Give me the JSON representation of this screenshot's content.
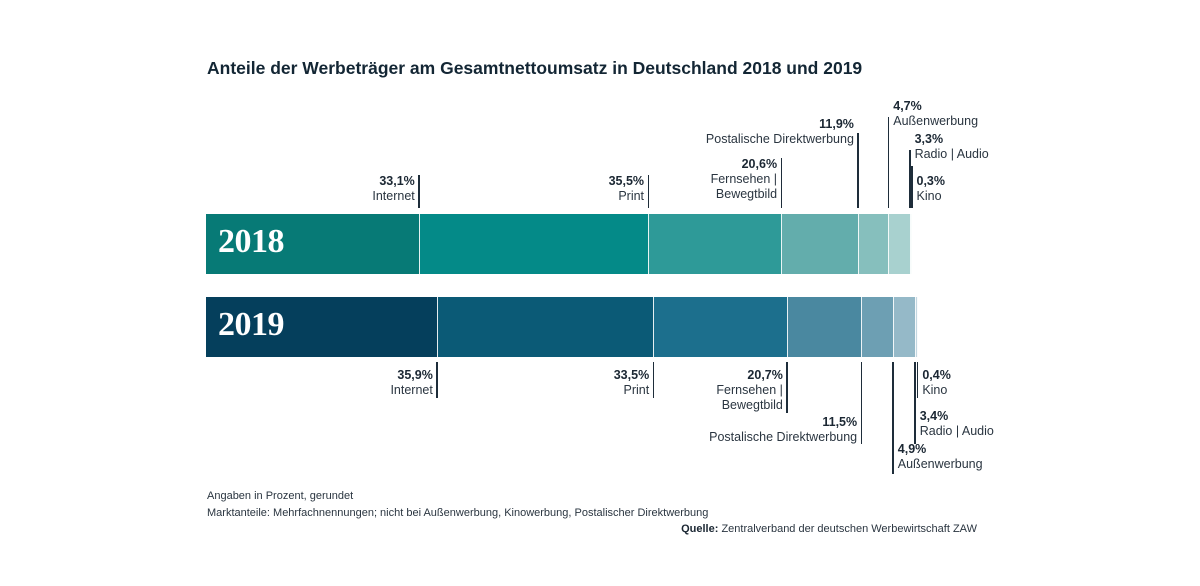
{
  "chart_data": {
    "type": "bar",
    "orientation": "horizontal-stacked",
    "title": "Anteile der Werbeträger am Gesamtnettoumsatz in Deutschland 2018 und 2019",
    "categories": [
      "2018",
      "2019"
    ],
    "series": [
      {
        "name": "Internet",
        "values": [
          33.1,
          35.9
        ],
        "labels": [
          "33,1%",
          "35,9%"
        ],
        "colors": [
          "#077a76",
          "#053f5c"
        ]
      },
      {
        "name": "Print",
        "values": [
          35.5,
          33.5
        ],
        "labels": [
          "35,5%",
          "33,5%"
        ],
        "colors": [
          "#048a88",
          "#0b5a76"
        ]
      },
      {
        "name": "Fernsehen |\nBewegtbild",
        "values": [
          20.6,
          20.7
        ],
        "labels": [
          "20,6%",
          "20,7%"
        ],
        "colors": [
          "#2e9a98",
          "#1c6f8d"
        ]
      },
      {
        "name": "Postalische Direktwerbung",
        "values": [
          11.9,
          11.5
        ],
        "labels": [
          "11,9%",
          "11,5%"
        ],
        "colors": [
          "#63adac",
          "#4a88a0"
        ]
      },
      {
        "name": "Außenwerbung",
        "values": [
          4.7,
          4.9
        ],
        "labels": [
          "4,7%",
          "4,9%"
        ],
        "colors": [
          "#86bfbd",
          "#6d9fb3"
        ]
      },
      {
        "name": "Radio | Audio",
        "values": [
          3.3,
          3.4
        ],
        "labels": [
          "3,3%",
          "3,4%"
        ],
        "colors": [
          "#a8d1cf",
          "#95b9c8"
        ]
      },
      {
        "name": "Kino",
        "values": [
          0.3,
          0.4
        ],
        "labels": [
          "0,3%",
          "0,4%"
        ],
        "colors": [
          "#c9e3e1",
          "#c3d7e0"
        ]
      }
    ],
    "year_colors": [
      "#047371",
      "#03324d"
    ],
    "xlim": [
      0,
      109.3
    ],
    "grid": false,
    "legend": "none"
  },
  "footnotes": [
    "Angaben in Prozent, gerundet",
    "Marktanteile: Mehrfachnennungen; nicht bei Außenwerbung, Kinowerbung, Postalischer Direktwerbung"
  ],
  "source": {
    "label": "Quelle:",
    "text": "Zentralverband der deutschen Werbewirtschaft ZAW"
  }
}
